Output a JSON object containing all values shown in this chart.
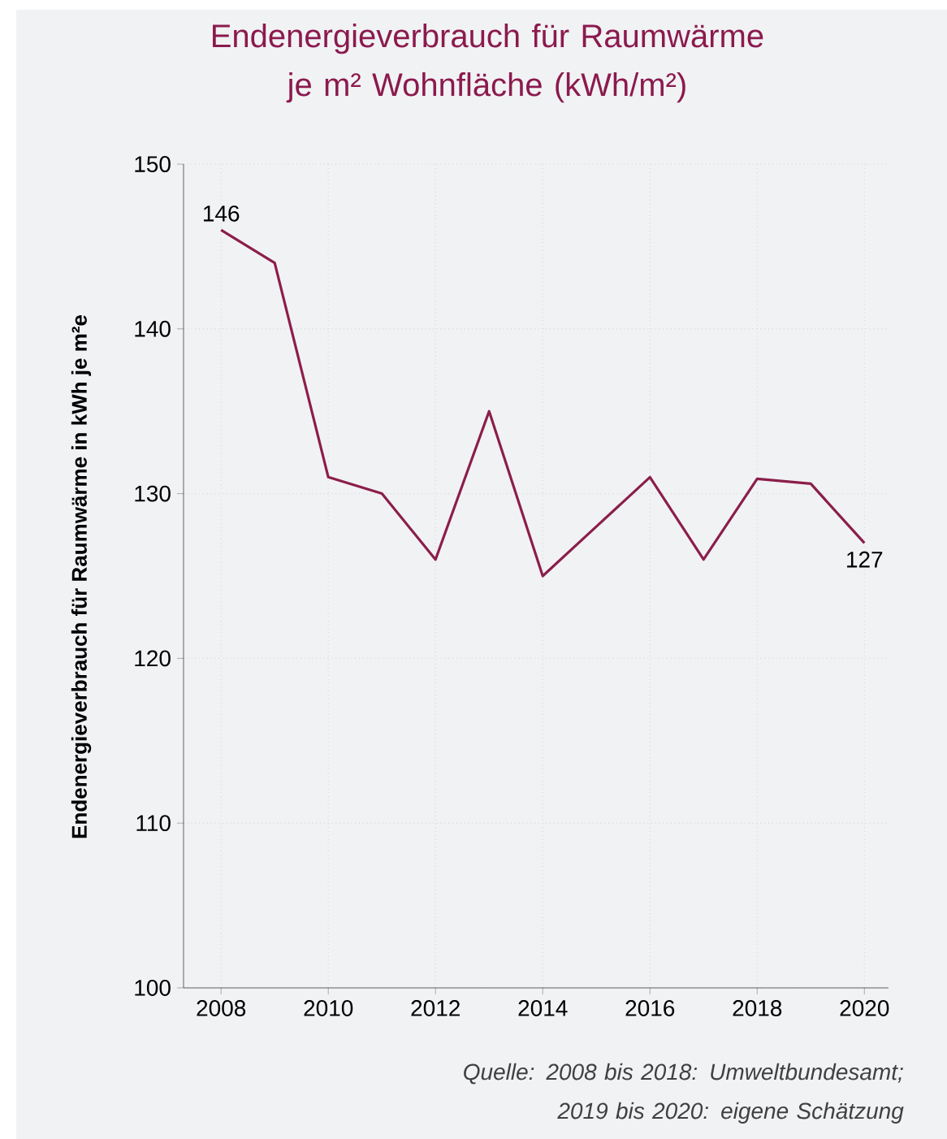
{
  "chart_data": {
    "type": "line",
    "title": "Endenergieverbrauch für Raumwärme je m² Wohnfläche (kWh/m²)",
    "ylabel": "Endenergieverbrauch für Raumwärme in kWh je m²e",
    "x": [
      2008,
      2009,
      2010,
      2011,
      2012,
      2013,
      2014,
      2015,
      2016,
      2017,
      2018,
      2019,
      2020
    ],
    "series": [
      {
        "color": "#8b1e4b",
        "values": [
          146,
          144,
          131,
          130,
          126,
          135,
          125,
          128,
          131,
          126,
          130.9,
          130.6,
          127
        ],
        "value_labels": [
          "146",
          null,
          null,
          null,
          null,
          null,
          null,
          null,
          null,
          null,
          null,
          null,
          "127"
        ]
      }
    ],
    "xlim": [
      2007.3,
      2020.45
    ],
    "ylim": [
      100,
      150
    ],
    "xticks": [
      2008,
      2010,
      2012,
      2014,
      2016,
      2018,
      2020
    ],
    "yticks": [
      100,
      110,
      120,
      130,
      140,
      150
    ],
    "grid": true,
    "marker": "none",
    "line_style": "solid",
    "annotations": [
      "Quelle: 2008 bis 2018: Umweltbundesamt; 2019 bis 2020: eigene Schätzung"
    ]
  }
}
